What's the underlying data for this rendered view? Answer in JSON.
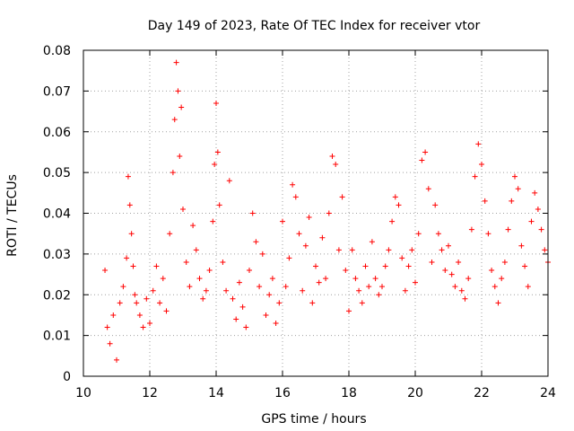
{
  "chart_data": {
    "type": "scatter",
    "title": "Day 149 of 2023, Rate Of TEC Index for receiver vtor",
    "xlabel": "GPS time / hours",
    "ylabel": "ROTI / TECUs",
    "xlim": [
      10,
      24
    ],
    "ylim": [
      0,
      0.08
    ],
    "x_ticks": [
      "10",
      "12",
      "14",
      "16",
      "18",
      "20",
      "22",
      "24"
    ],
    "y_ticks": [
      "0",
      "0.01",
      "0.02",
      "0.03",
      "0.04",
      "0.05",
      "0.06",
      "0.07",
      "0.08"
    ],
    "grid": true,
    "legend": "none",
    "marker": "+",
    "color": "#ff0000",
    "series": [
      {
        "x": [
          10.65,
          10.72,
          10.8,
          10.9,
          11.0,
          11.1,
          11.2,
          11.3,
          11.35,
          11.4,
          11.45,
          11.5,
          11.55,
          11.6,
          11.7,
          11.8,
          11.9,
          12.0,
          12.1,
          12.2,
          12.3,
          12.4,
          12.5,
          12.6,
          12.7,
          12.75,
          12.8,
          12.85,
          12.9,
          12.95,
          13.0,
          13.1,
          13.2,
          13.3,
          13.4,
          13.5,
          13.6,
          13.7,
          13.8,
          13.9,
          13.95,
          14.0,
          14.05,
          14.1,
          14.2,
          14.3,
          14.4,
          14.5,
          14.6,
          14.7,
          14.8,
          14.9,
          15.0,
          15.1,
          15.2,
          15.3,
          15.4,
          15.5,
          15.6,
          15.7,
          15.8,
          15.9,
          16.0,
          16.1,
          16.2,
          16.3,
          16.4,
          16.5,
          16.6,
          16.7,
          16.8,
          16.9,
          17.0,
          17.1,
          17.2,
          17.3,
          17.4,
          17.5,
          17.6,
          17.7,
          17.8,
          17.9,
          18.0,
          18.1,
          18.2,
          18.3,
          18.4,
          18.5,
          18.6,
          18.7,
          18.8,
          18.9,
          19.0,
          19.1,
          19.2,
          19.3,
          19.4,
          19.5,
          19.6,
          19.7,
          19.8,
          19.9,
          20.0,
          20.1,
          20.2,
          20.3,
          20.4,
          20.5,
          20.6,
          20.7,
          20.8,
          20.9,
          21.0,
          21.1,
          21.2,
          21.3,
          21.4,
          21.5,
          21.6,
          21.7,
          21.8,
          21.9,
          22.0,
          22.1,
          22.2,
          22.3,
          22.4,
          22.5,
          22.6,
          22.7,
          22.8,
          22.9,
          23.0,
          23.1,
          23.2,
          23.3,
          23.4,
          23.5,
          23.6,
          23.7,
          23.8,
          23.9,
          24.0
        ],
        "y": [
          0.026,
          0.012,
          0.008,
          0.015,
          0.004,
          0.018,
          0.022,
          0.029,
          0.049,
          0.042,
          0.035,
          0.027,
          0.02,
          0.018,
          0.015,
          0.012,
          0.019,
          0.013,
          0.021,
          0.027,
          0.018,
          0.024,
          0.016,
          0.035,
          0.05,
          0.063,
          0.077,
          0.07,
          0.054,
          0.066,
          0.041,
          0.028,
          0.022,
          0.037,
          0.031,
          0.024,
          0.019,
          0.021,
          0.026,
          0.038,
          0.052,
          0.067,
          0.055,
          0.042,
          0.028,
          0.021,
          0.048,
          0.019,
          0.014,
          0.023,
          0.017,
          0.012,
          0.026,
          0.04,
          0.033,
          0.022,
          0.03,
          0.015,
          0.02,
          0.024,
          0.013,
          0.018,
          0.038,
          0.022,
          0.029,
          0.047,
          0.044,
          0.035,
          0.021,
          0.032,
          0.039,
          0.018,
          0.027,
          0.023,
          0.034,
          0.024,
          0.04,
          0.054,
          0.052,
          0.031,
          0.044,
          0.026,
          0.016,
          0.031,
          0.024,
          0.021,
          0.018,
          0.027,
          0.022,
          0.033,
          0.024,
          0.02,
          0.022,
          0.027,
          0.031,
          0.038,
          0.044,
          0.042,
          0.029,
          0.021,
          0.027,
          0.031,
          0.023,
          0.035,
          0.053,
          0.055,
          0.046,
          0.028,
          0.042,
          0.035,
          0.031,
          0.026,
          0.032,
          0.025,
          0.022,
          0.028,
          0.021,
          0.019,
          0.024,
          0.036,
          0.049,
          0.057,
          0.052,
          0.043,
          0.035,
          0.026,
          0.022,
          0.018,
          0.024,
          0.028,
          0.036,
          0.043,
          0.049,
          0.046,
          0.032,
          0.027,
          0.022,
          0.038,
          0.045,
          0.041,
          0.036,
          0.031,
          0.028
        ]
      }
    ]
  }
}
